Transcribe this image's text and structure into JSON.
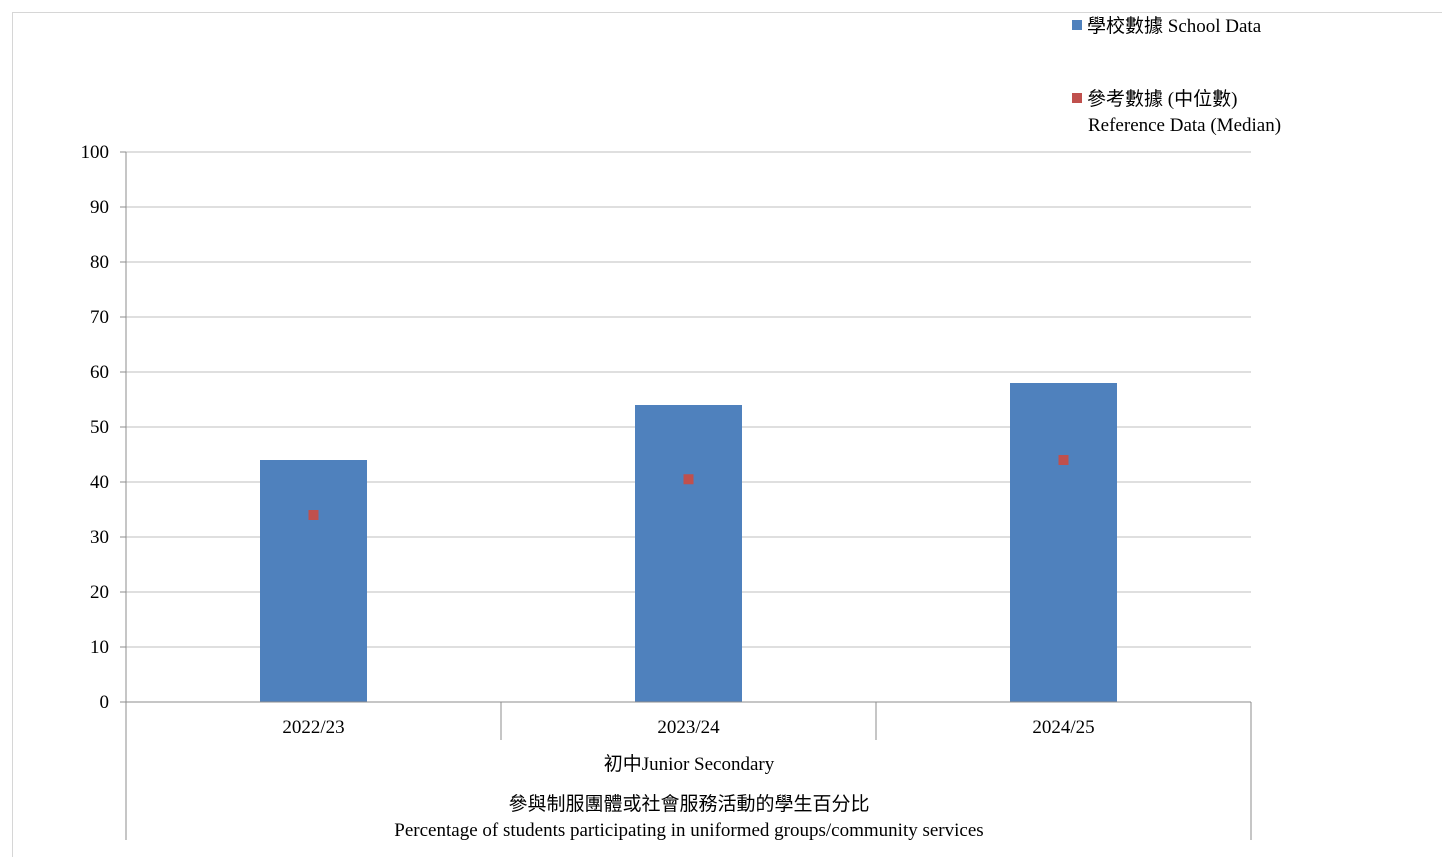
{
  "chart_data": {
    "type": "bar",
    "categories": [
      "2022/23",
      "2023/24",
      "2024/25"
    ],
    "group_label": "初中Junior Secondary",
    "series": [
      {
        "name": "學校數據 School Data",
        "kind": "bar",
        "color": "#4f81bd",
        "values": [
          44,
          54,
          58
        ]
      },
      {
        "name_line1": "參考數據 (中位數)",
        "name_line2": "Reference Data (Median)",
        "kind": "marker",
        "color": "#c0504d",
        "values": [
          34,
          40.5,
          44
        ]
      }
    ],
    "ylim": [
      0,
      100
    ],
    "yticks": [
      0,
      10,
      20,
      30,
      40,
      50,
      60,
      70,
      80,
      90,
      100
    ],
    "grid": true,
    "legend_position": "top-right",
    "title_zh": "參與制服團體或社會服務活動的學生百分比",
    "title_en": "Percentage of students participating in uniformed groups/community services"
  }
}
